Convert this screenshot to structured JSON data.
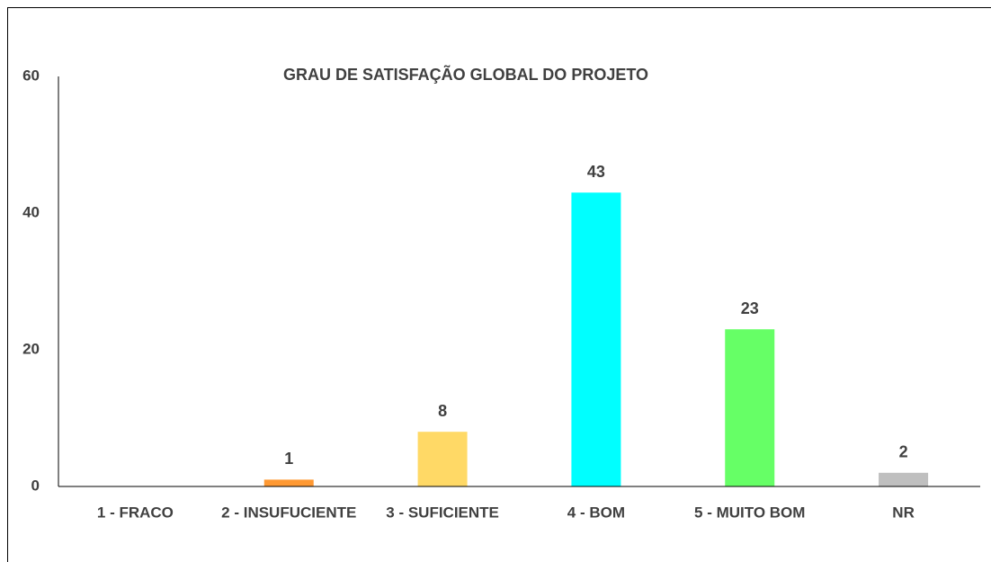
{
  "chart_data": {
    "type": "bar",
    "title": "GRAU DE SATISFAÇÃO GLOBAL DO PROJETO",
    "categories": [
      "1 - FRACO",
      "2 - INSUFUCIENTE",
      "3 - SUFICIENTE",
      "4 - BOM",
      "5 - MUITO BOM",
      "NR"
    ],
    "values": [
      0,
      1,
      8,
      43,
      23,
      2
    ],
    "value_labels": [
      null,
      "1",
      "8",
      "43",
      "23",
      "2"
    ],
    "colors": [
      "#5b9bd5",
      "#ff9933",
      "#ffd966",
      "#00ffff",
      "#66ff66",
      "#bfbfbf"
    ],
    "ylim": [
      0,
      60
    ],
    "yticks": [
      0,
      20,
      40,
      60
    ],
    "grid": false
  }
}
